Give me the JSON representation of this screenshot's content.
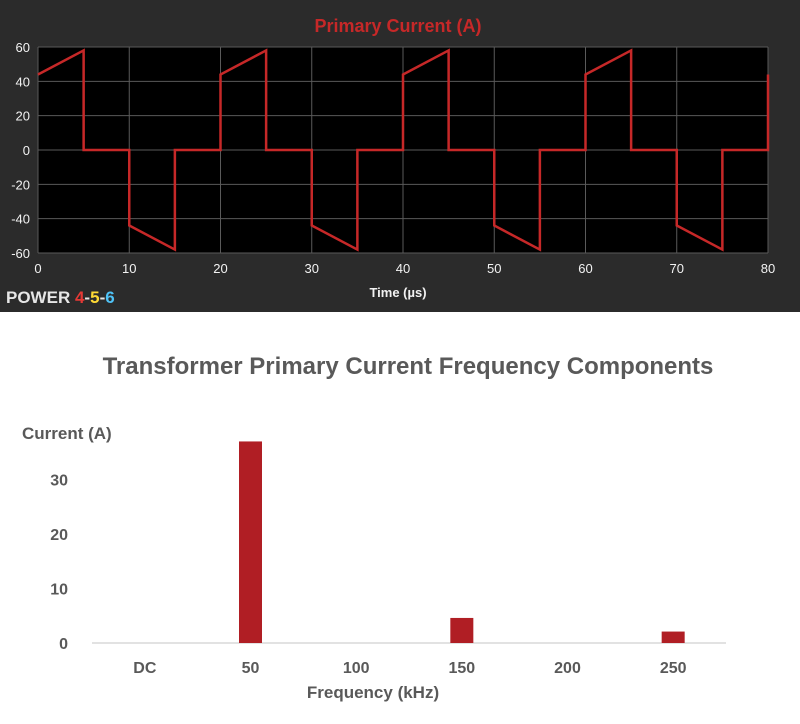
{
  "chart_data": [
    {
      "type": "line",
      "title": "Primary Current (A)",
      "xlabel": "Time (µs)",
      "ylabel": "",
      "xlim": [
        0,
        80
      ],
      "ylim": [
        -60,
        60
      ],
      "xticks": [
        0,
        10,
        20,
        30,
        40,
        50,
        60,
        70,
        80
      ],
      "yticks": [
        60,
        40,
        20,
        0,
        -20,
        -40,
        -60
      ],
      "grid": true,
      "series": [
        {
          "color": "#c62828",
          "x": [
            0,
            5,
            5,
            10,
            10,
            15,
            15,
            20,
            20,
            25,
            25,
            30,
            30,
            35,
            35,
            40,
            40,
            45,
            45,
            50,
            50,
            55,
            55,
            60,
            60,
            65,
            65,
            70,
            70,
            75,
            75,
            80,
            80
          ],
          "y": [
            44,
            58,
            0,
            0,
            -44,
            -58,
            0,
            0,
            44,
            58,
            0,
            0,
            -44,
            -58,
            0,
            0,
            44,
            58,
            0,
            0,
            -44,
            -58,
            0,
            0,
            44,
            58,
            0,
            0,
            -44,
            -58,
            0,
            0,
            44
          ]
        }
      ]
    },
    {
      "type": "bar",
      "title": "Transformer Primary Current Frequency Components",
      "xlabel": "Frequency (kHz)",
      "ylabel": "Current (A)",
      "ylim": [
        0,
        38
      ],
      "yticks": [
        0,
        10,
        20,
        30
      ],
      "categories": [
        "DC",
        "50",
        "100",
        "150",
        "200",
        "250"
      ],
      "values": [
        0,
        37,
        0,
        4.6,
        0,
        2.1
      ],
      "bar_color": "#b01e24",
      "grid": false
    }
  ],
  "logo": {
    "word": "POWER ",
    "d1": "4",
    "sep1": "-",
    "d2": "5",
    "sep2": "-",
    "d3": "6",
    "colors": {
      "word": "#e6e6e6",
      "d1": "#e53935",
      "d2": "#fdd835",
      "d3": "#4fc3f7",
      "sep": "#e6e6e6"
    }
  },
  "colors": {
    "top_bg": "#2b2b2b",
    "plot_bg": "#000000",
    "grid": "#5a5a5a",
    "axis_text": "#f2f2f2",
    "title_red": "#c62828",
    "bottom_text": "#595959"
  }
}
